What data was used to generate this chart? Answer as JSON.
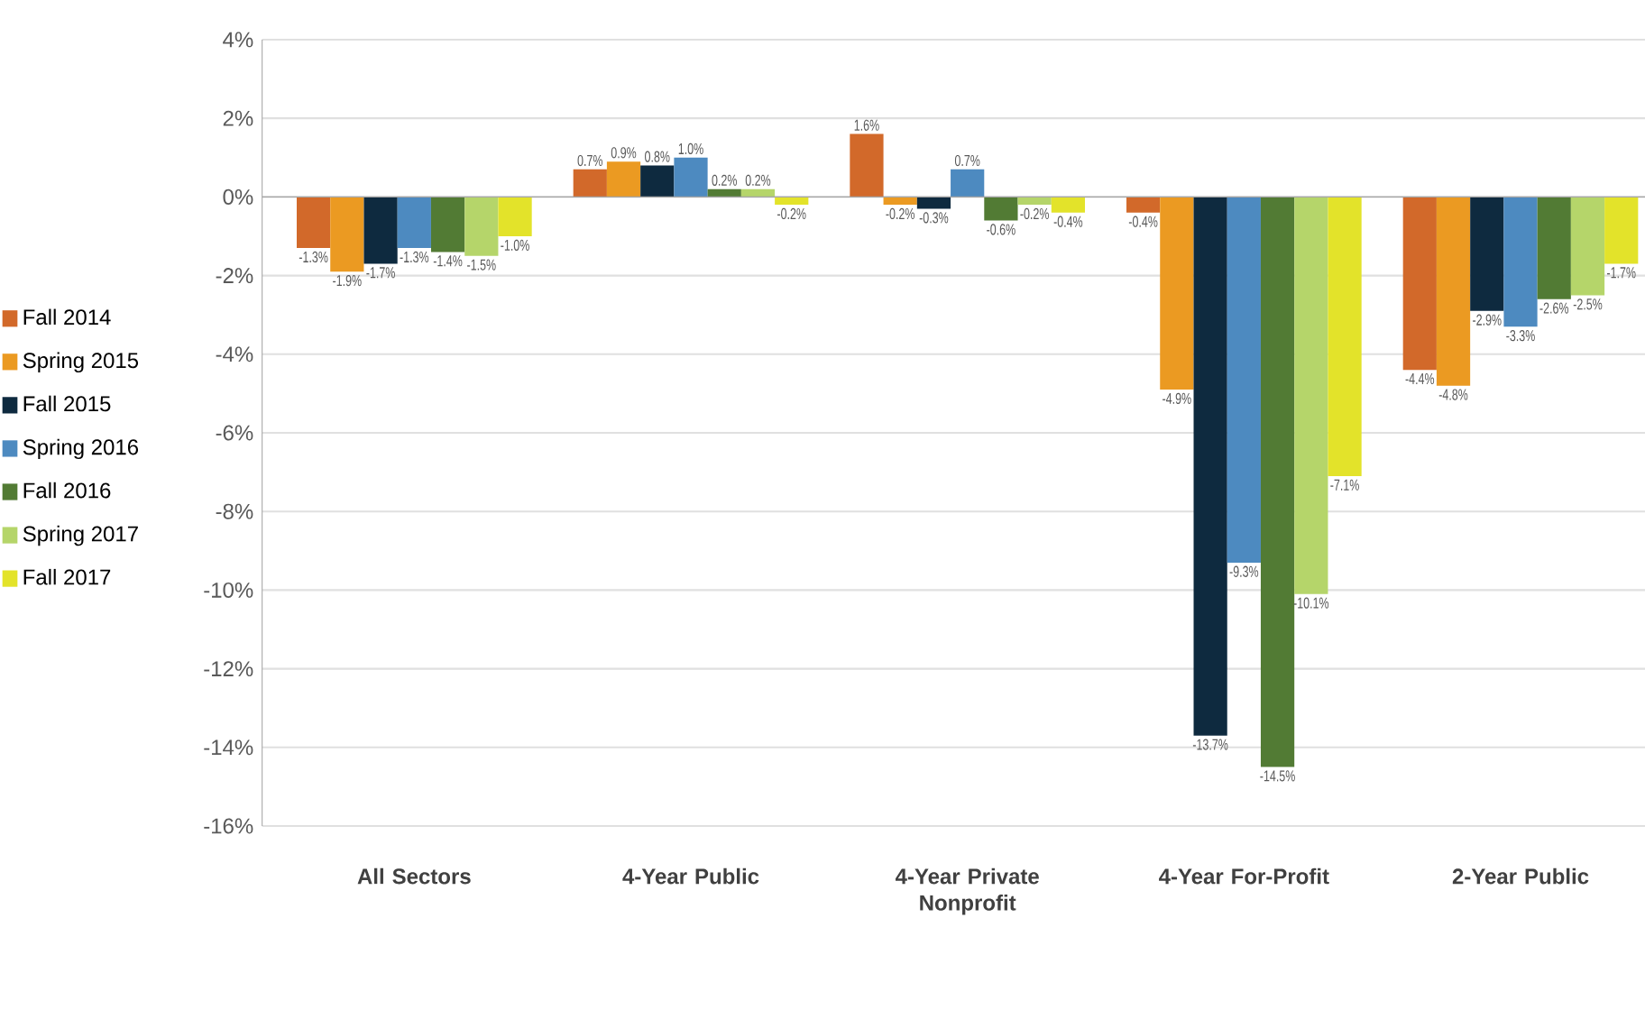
{
  "chart_data": {
    "type": "bar",
    "categories": [
      "All Sectors",
      "4-Year Public",
      "4-Year Private Nonprofit",
      "4-Year For-Profit",
      "2-Year Public"
    ],
    "series": [
      {
        "name": "Fall 2014",
        "color": "#d2692a",
        "values": [
          -1.3,
          0.7,
          1.6,
          -0.4,
          -4.4
        ],
        "value_labels": [
          "-1.3%",
          "0.7%",
          "1.6%",
          "-0.4%",
          "-4.4%"
        ]
      },
      {
        "name": "Spring 2015",
        "color": "#eb9a22",
        "values": [
          -1.9,
          0.9,
          -0.2,
          -4.9,
          -4.8
        ],
        "value_labels": [
          "-1.9%",
          "0.9%",
          "-0.2%",
          "-4.9%",
          "-4.8%"
        ]
      },
      {
        "name": "Fall 2015",
        "color": "#0e2a3f",
        "values": [
          -1.7,
          0.8,
          -0.3,
          -13.7,
          -2.9
        ],
        "value_labels": [
          "-1.7%",
          "0.8%",
          "-0.3%",
          "-13.7%",
          "-2.9%"
        ]
      },
      {
        "name": "Spring 2016",
        "color": "#4d8ac0",
        "values": [
          -1.3,
          1.0,
          0.7,
          -9.3,
          -3.3
        ],
        "value_labels": [
          "-1.3%",
          "1.0%",
          "0.7%",
          "-9.3%",
          "-3.3%"
        ]
      },
      {
        "name": "Fall 2016",
        "color": "#527b34",
        "values": [
          -1.4,
          0.2,
          -0.6,
          -14.5,
          -2.6
        ],
        "value_labels": [
          "-1.4%",
          "0.2%",
          "-0.6%",
          "-14.5%",
          "-2.6%"
        ]
      },
      {
        "name": "Spring 2017",
        "color": "#b5d56a",
        "values": [
          -1.5,
          0.2,
          -0.2,
          -10.1,
          -2.5
        ],
        "value_labels": [
          "-1.5%",
          "0.2%",
          "-0.2%",
          "-10.1%",
          "-2.5%"
        ]
      },
      {
        "name": "Fall 2017",
        "color": "#e3e32a",
        "values": [
          -1.0,
          -0.2,
          -0.4,
          -7.1,
          -1.7
        ],
        "value_labels": [
          "-1.0%",
          "-0.2%",
          "-0.4%",
          "-7.1%",
          "-1.7%"
        ]
      }
    ],
    "ylim": [
      -16,
      4
    ],
    "yticks": [
      {
        "value": -16,
        "label": "-16%"
      },
      {
        "value": -14,
        "label": "-14%"
      },
      {
        "value": -12,
        "label": "-12%"
      },
      {
        "value": -10,
        "label": "-10%"
      },
      {
        "value": -8,
        "label": "-8%"
      },
      {
        "value": -6,
        "label": "-6%"
      },
      {
        "value": -4,
        "label": "-4%"
      },
      {
        "value": -2,
        "label": "-2%"
      },
      {
        "value": 0,
        "label": "0%"
      },
      {
        "value": 2,
        "label": "2%"
      },
      {
        "value": 4,
        "label": "4%"
      }
    ],
    "grid": "y",
    "legend": "left"
  }
}
